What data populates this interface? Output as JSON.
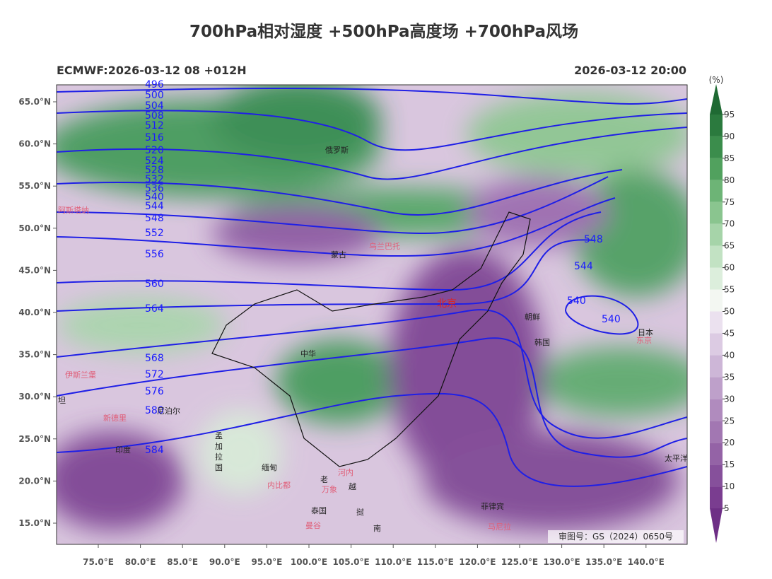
{
  "header": {
    "title": "700hPa相对湿度 +500hPa高度场 +700hPa风场",
    "run_label": "ECMWF:2026-03-12 08 +012H",
    "valid_time": "2026-03-12 20:00"
  },
  "map": {
    "lat_ticks": [
      {
        "value": 65,
        "label": "65.0°N"
      },
      {
        "value": 60,
        "label": "60.0°N"
      },
      {
        "value": 55,
        "label": "55.0°N"
      },
      {
        "value": 50,
        "label": "50.0°N"
      },
      {
        "value": 45,
        "label": "45.0°N"
      },
      {
        "value": 40,
        "label": "40.0°N"
      },
      {
        "value": 35,
        "label": "35.0°N"
      },
      {
        "value": 30,
        "label": "30.0°N"
      },
      {
        "value": 25,
        "label": "25.0°N"
      },
      {
        "value": 20,
        "label": "20.0°N"
      },
      {
        "value": 15,
        "label": "15.0°N"
      }
    ],
    "lon_ticks": [
      {
        "value": 75,
        "label": "75.0°E"
      },
      {
        "value": 80,
        "label": "80.0°E"
      },
      {
        "value": 85,
        "label": "85.0°E"
      },
      {
        "value": 90,
        "label": "90.0°E"
      },
      {
        "value": 95,
        "label": "95.0°E"
      },
      {
        "value": 100,
        "label": "100.0°E"
      },
      {
        "value": 105,
        "label": "105.0°E"
      },
      {
        "value": 110,
        "label": "110.0°E"
      },
      {
        "value": 115,
        "label": "115.0°E"
      },
      {
        "value": 120,
        "label": "120.0°E"
      },
      {
        "value": 125,
        "label": "125.0°E"
      },
      {
        "value": 130,
        "label": "130.0°E"
      },
      {
        "value": 135,
        "label": "135.0°E"
      },
      {
        "value": 140,
        "label": "140.0°E"
      }
    ],
    "contour_labels": [
      496,
      500,
      504,
      508,
      512,
      516,
      520,
      524,
      528,
      532,
      536,
      540,
      544,
      548,
      552,
      556,
      560,
      564,
      568,
      572,
      576,
      580,
      584,
      548,
      544,
      540,
      540
    ],
    "places": [
      "俄罗斯",
      "蒙古",
      "乌兰巴托",
      "北京",
      "朝鲜",
      "韩国",
      "日本",
      "东京",
      "中华",
      "孟",
      "加",
      "拉",
      "国",
      "缅甸",
      "内比都",
      "印度",
      "泰国",
      "老",
      "挝",
      "越",
      "南",
      "河内",
      "万象",
      "曼谷",
      "菲律宾",
      "马尼拉",
      "太平洋",
      "阿斯塔纳",
      "伊斯兰堡",
      "新德里",
      "尼泊尔",
      "坦"
    ],
    "approval": "审图号：GS（2024）0650号"
  },
  "colorbar": {
    "unit": "(%)",
    "ticks": [
      5,
      10,
      15,
      20,
      25,
      30,
      35,
      40,
      45,
      50,
      55,
      60,
      65,
      70,
      75,
      80,
      85,
      90,
      95
    ],
    "lim": [
      0,
      100
    ],
    "colors": [
      "#6e2f86",
      "#7a3d90",
      "#86509b",
      "#9463a6",
      "#a277b2",
      "#b08bbe",
      "#bea0ca",
      "#cdb6d7",
      "#dccbe3",
      "#ebe1ef",
      "#f3f7f2",
      "#dceedc",
      "#c2e2c3",
      "#a6d4a9",
      "#8ac58f",
      "#6db476",
      "#51a15e",
      "#3b8d4c",
      "#2b7a3e",
      "#1f6a33"
    ]
  }
}
